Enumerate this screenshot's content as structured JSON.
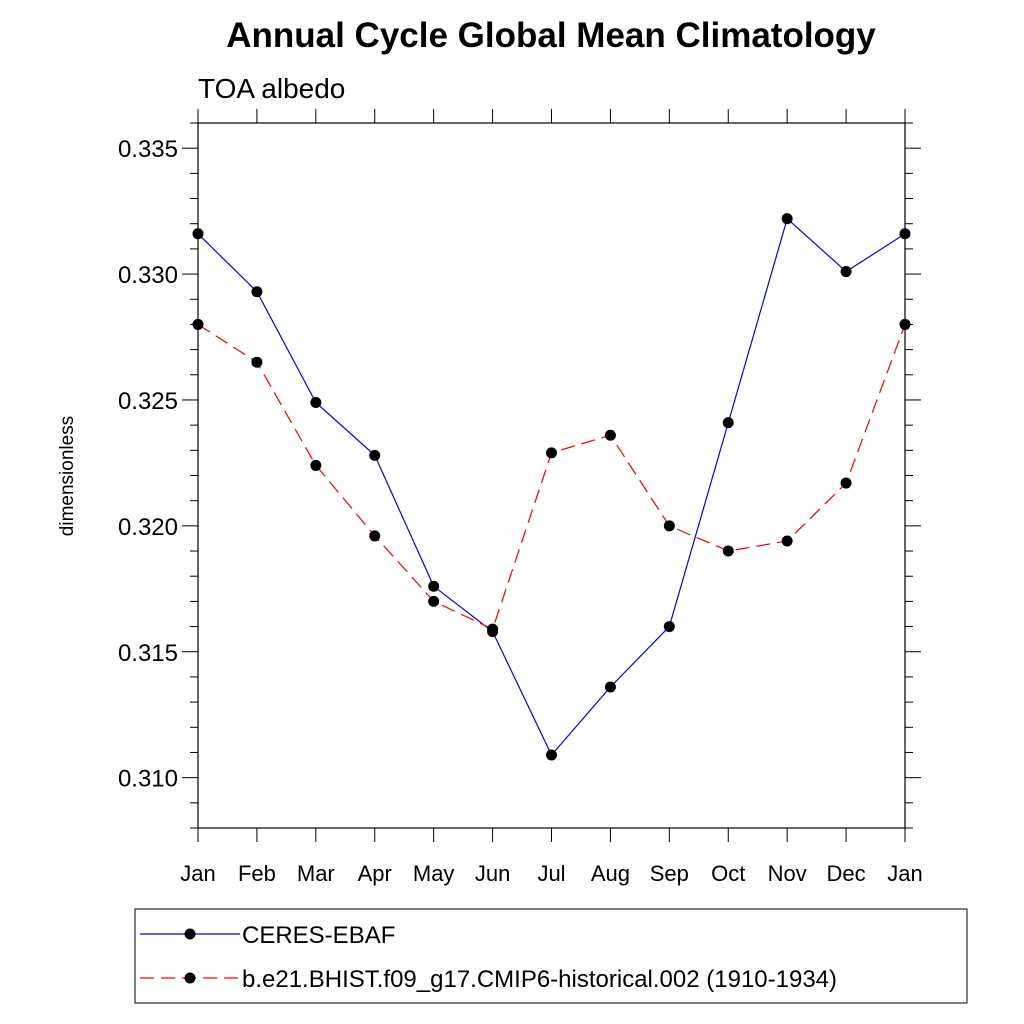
{
  "chart_data": {
    "type": "line",
    "title": "Annual Cycle Global Mean Climatology",
    "subtitle": "TOA albedo",
    "ylabel": "dimensionless",
    "xlabel": "",
    "categories": [
      "Jan",
      "Feb",
      "Mar",
      "Apr",
      "May",
      "Jun",
      "Jul",
      "Aug",
      "Sep",
      "Oct",
      "Nov",
      "Dec",
      "Jan"
    ],
    "ylim": [
      0.308,
      0.336
    ],
    "yticks": [
      "0.310",
      "0.315",
      "0.320",
      "0.325",
      "0.330",
      "0.335"
    ],
    "legend_position": "bottom",
    "series": [
      {
        "name": "CERES-EBAF",
        "color": "#0000ff",
        "line_style": "solid",
        "marker": "filled-circle",
        "values": [
          0.3316,
          0.3293,
          0.3249,
          0.3228,
          0.3176,
          0.3158,
          0.3109,
          0.3136,
          0.316,
          0.3241,
          0.3322,
          0.3301,
          0.3316
        ]
      },
      {
        "name": "b.e21.BHIST.f09_g17.CMIP6-historical.002 (1910-1934)",
        "color": "#ff0000",
        "line_style": "dashed",
        "marker": "filled-circle",
        "values": [
          0.328,
          0.3265,
          0.3224,
          0.3196,
          0.317,
          0.3159,
          0.3229,
          0.3236,
          0.32,
          0.319,
          0.3194,
          0.3217,
          0.328
        ]
      }
    ]
  }
}
